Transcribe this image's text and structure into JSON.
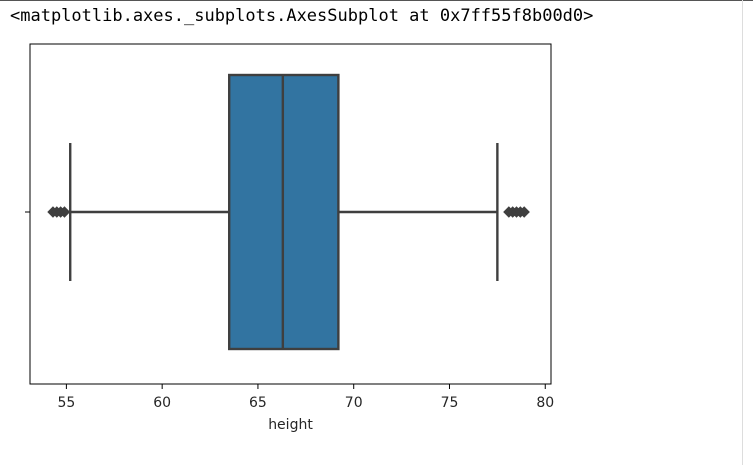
{
  "output_text": "<matplotlib.axes._subplots.AxesSubplot at 0x7ff55f8b00d0>",
  "colors": {
    "box_fill": "#3274a1",
    "line": "#3f3f3f",
    "spine": "#000000",
    "text": "#262626"
  },
  "chart_data": {
    "type": "box",
    "orientation": "horizontal",
    "xlabel": "height",
    "ylabel": "",
    "xlim": [
      53.1,
      80.3
    ],
    "xticks": [
      55,
      60,
      65,
      70,
      75,
      80
    ],
    "grid": false,
    "series": [
      {
        "q1": 63.5,
        "median": 66.3,
        "q3": 69.2,
        "whisker_low": 55.2,
        "whisker_high": 77.5,
        "outliers": [
          54.3,
          54.5,
          54.7,
          54.9,
          78.1,
          78.3,
          78.5,
          78.7,
          78.9
        ]
      }
    ]
  }
}
